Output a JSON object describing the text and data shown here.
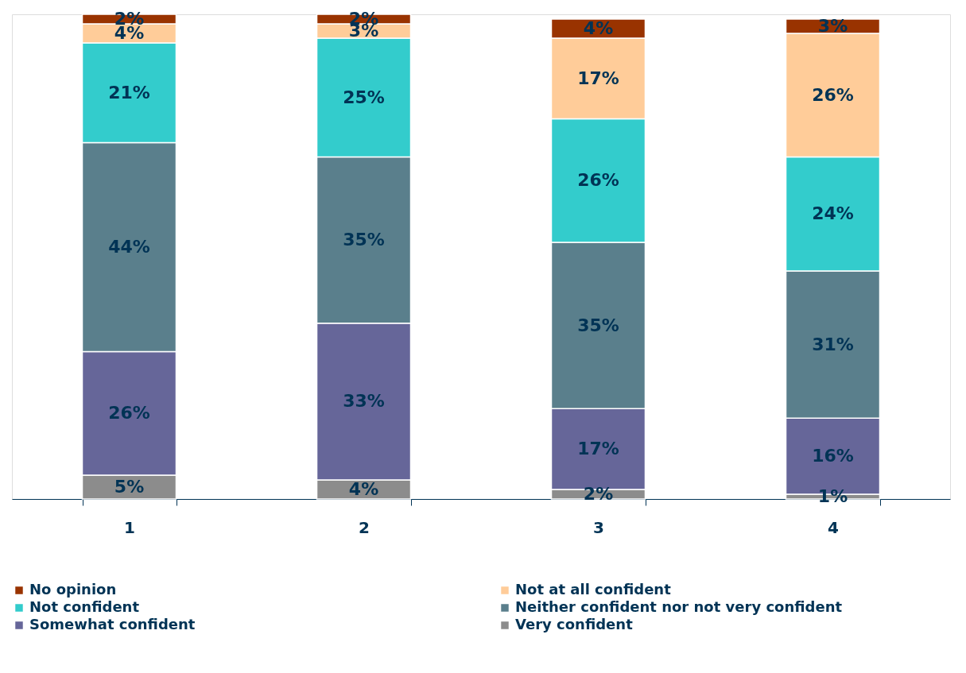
{
  "chart_data": {
    "type": "bar",
    "stacked": true,
    "categories": [
      "1",
      "2",
      "3",
      "4"
    ],
    "series": [
      {
        "name": "Very confident",
        "color": "#8c8c8c",
        "values": [
          5,
          4,
          2,
          1
        ],
        "value_labels": [
          "5%",
          "4%",
          "2%",
          "1%"
        ]
      },
      {
        "name": "Somewhat confident",
        "color": "#666699",
        "values": [
          26,
          33,
          17,
          16
        ],
        "value_labels": [
          "26%",
          "33%",
          "17%",
          "16%"
        ]
      },
      {
        "name": "Neither confident nor not very confident",
        "color": "#5a7f8c",
        "values": [
          44,
          35,
          35,
          31
        ],
        "value_labels": [
          "44%",
          "35%",
          "35%",
          "31%"
        ]
      },
      {
        "name": "Not confident",
        "color": "#33cccc",
        "values": [
          21,
          25,
          26,
          24
        ],
        "value_labels": [
          "21%",
          "25%",
          "26%",
          "24%"
        ]
      },
      {
        "name": "Not at all confident",
        "color": "#ffcc99",
        "values": [
          4,
          3,
          17,
          26
        ],
        "value_labels": [
          "4%",
          "3%",
          "17%",
          "26%"
        ]
      },
      {
        "name": "No opinion",
        "color": "#993300",
        "values": [
          2,
          2,
          4,
          3
        ],
        "value_labels": [
          "2%",
          "2%",
          "4%",
          "3%"
        ]
      }
    ],
    "legend": "bottom",
    "grid": false
  }
}
